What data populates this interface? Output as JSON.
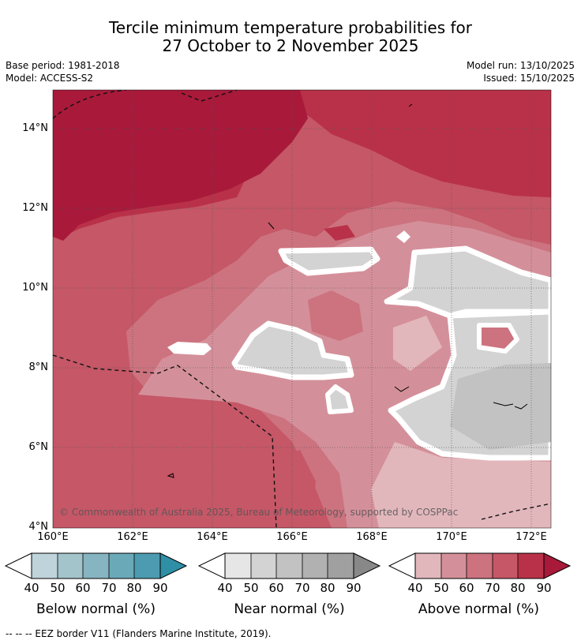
{
  "title": {
    "line1": "Tercile minimum temperature probabilities for",
    "line2": "27 October to 2 November 2025"
  },
  "meta": {
    "base_period": "Base period: 1981-2018",
    "model": "Model: ACCESS-S2",
    "model_run": "Model run: 13/10/2025",
    "issued": "Issued: 15/10/2025"
  },
  "map": {
    "copyright": "© Commonwealth of Australia 2025, Bureau of Meteorology, supported by COSPPac",
    "lat_ticks": [
      "14°N",
      "12°N",
      "10°N",
      "8°N",
      "6°N",
      "4°N"
    ],
    "lon_ticks": [
      "160°E",
      "162°E",
      "164°E",
      "166°E",
      "168°E",
      "170°E",
      "172°E"
    ]
  },
  "colorbars": [
    {
      "label": "Below normal (%)",
      "ticks": [
        "40",
        "50",
        "60",
        "70",
        "80",
        "90"
      ],
      "colors": [
        "#bfd3da",
        "#a3c4cb",
        "#86b4c1",
        "#6aa9b8",
        "#4c9bb0",
        "#2f8fa6"
      ]
    },
    {
      "label": "Near normal (%)",
      "ticks": [
        "40",
        "50",
        "60",
        "70",
        "80",
        "90"
      ],
      "colors": [
        "#e6e6e6",
        "#d3d3d3",
        "#c2c2c2",
        "#b1b1b1",
        "#a0a0a0",
        "#888888"
      ]
    },
    {
      "label": "Above normal (%)",
      "ticks": [
        "40",
        "50",
        "60",
        "70",
        "80",
        "90"
      ],
      "colors": [
        "#e2b7bc",
        "#d4909a",
        "#cc737f",
        "#c55767",
        "#b93149",
        "#a8193a"
      ]
    }
  ],
  "footer": "--  --  -- EEZ border V11 (Flanders Marine Institute, 2019)."
}
